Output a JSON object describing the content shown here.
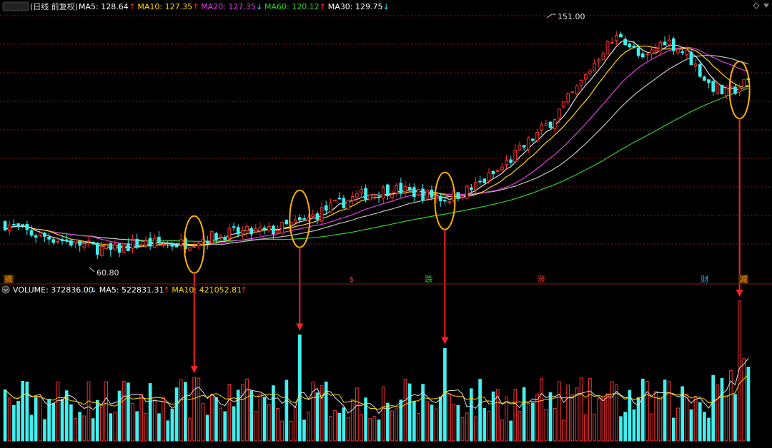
{
  "header": {
    "period_label": "(日线 前复权)",
    "ma_items": [
      {
        "label": "MA5: 128.64",
        "arrow": "↑",
        "color": "#ffffff",
        "arrow_color": "#ff3030"
      },
      {
        "label": "MA10: 127.35",
        "arrow": "↑",
        "color": "#ffd700",
        "arrow_color": "#ff3030"
      },
      {
        "label": "MA20: 127.35",
        "arrow": "↓",
        "color": "#e040e0",
        "arrow_color": "#40e0ff"
      },
      {
        "label": "MA60: 120.12",
        "arrow": "↑",
        "color": "#30d030",
        "arrow_color": "#ff3030"
      },
      {
        "label": "MA30: 129.75",
        "arrow": "↓",
        "color": "#ffffff",
        "arrow_color": "#40e0ff"
      }
    ]
  },
  "volume_header": {
    "items": [
      {
        "label": "VOLUME: 372836.00",
        "arrow": "↓",
        "color": "#ffffff",
        "arrow_color": "#40e0ff"
      },
      {
        "label": "MA5: 522831.31",
        "arrow": "↑",
        "color": "#ffffff",
        "arrow_color": "#ff3030"
      },
      {
        "label": "MA10: 421052.81",
        "arrow": "↑",
        "color": "#ffd700",
        "arrow_color": "#ff3030"
      }
    ]
  },
  "price_annotations": {
    "high": "151.00",
    "low": "60.80"
  },
  "event_markers": [
    {
      "label": "摘",
      "color": "#ff8800",
      "bg": "#553300"
    },
    {
      "label": "$",
      "color": "#ff3030",
      "bg": ""
    },
    {
      "label": "跌",
      "color": "#30d030",
      "bg": ""
    },
    {
      "label": "涨",
      "color": "#ff3030",
      "bg": ""
    },
    {
      "label": "财",
      "color": "#40a0ff",
      "bg": ""
    },
    {
      "label": "減",
      "color": "#ff8800",
      "bg": "#553300"
    }
  ],
  "colors": {
    "background": "#000000",
    "up": "#ff3030",
    "down": "#40f0f0",
    "grid": "#8b1a1a",
    "ma5": "#e0e0e0",
    "ma10": "#ffd700",
    "ma20": "#e040e0",
    "ma30": "#c0c0c0",
    "ma60": "#30d030",
    "highlight": "#ffb000",
    "arrow": "#ff2020"
  },
  "chart_data": {
    "type": "candlestick",
    "price_extremes": {
      "max": 151.0,
      "min": 60.8
    },
    "ylim": [
      55,
      158
    ],
    "current": {
      "MA5": 128.64,
      "MA10": 127.35,
      "MA20": 127.35,
      "MA60": 120.12,
      "MA30": 129.75
    },
    "volume": {
      "last": 372836.0,
      "MA5": 522831.31,
      "MA10": 421052.81
    },
    "candles": [],
    "highlights": [
      {
        "bar": 43,
        "note": "volume surge"
      },
      {
        "bar": 67,
        "note": "volume surge"
      },
      {
        "bar": 100,
        "note": "volume surge"
      },
      {
        "bar": 167,
        "note": "volume surge"
      }
    ]
  }
}
